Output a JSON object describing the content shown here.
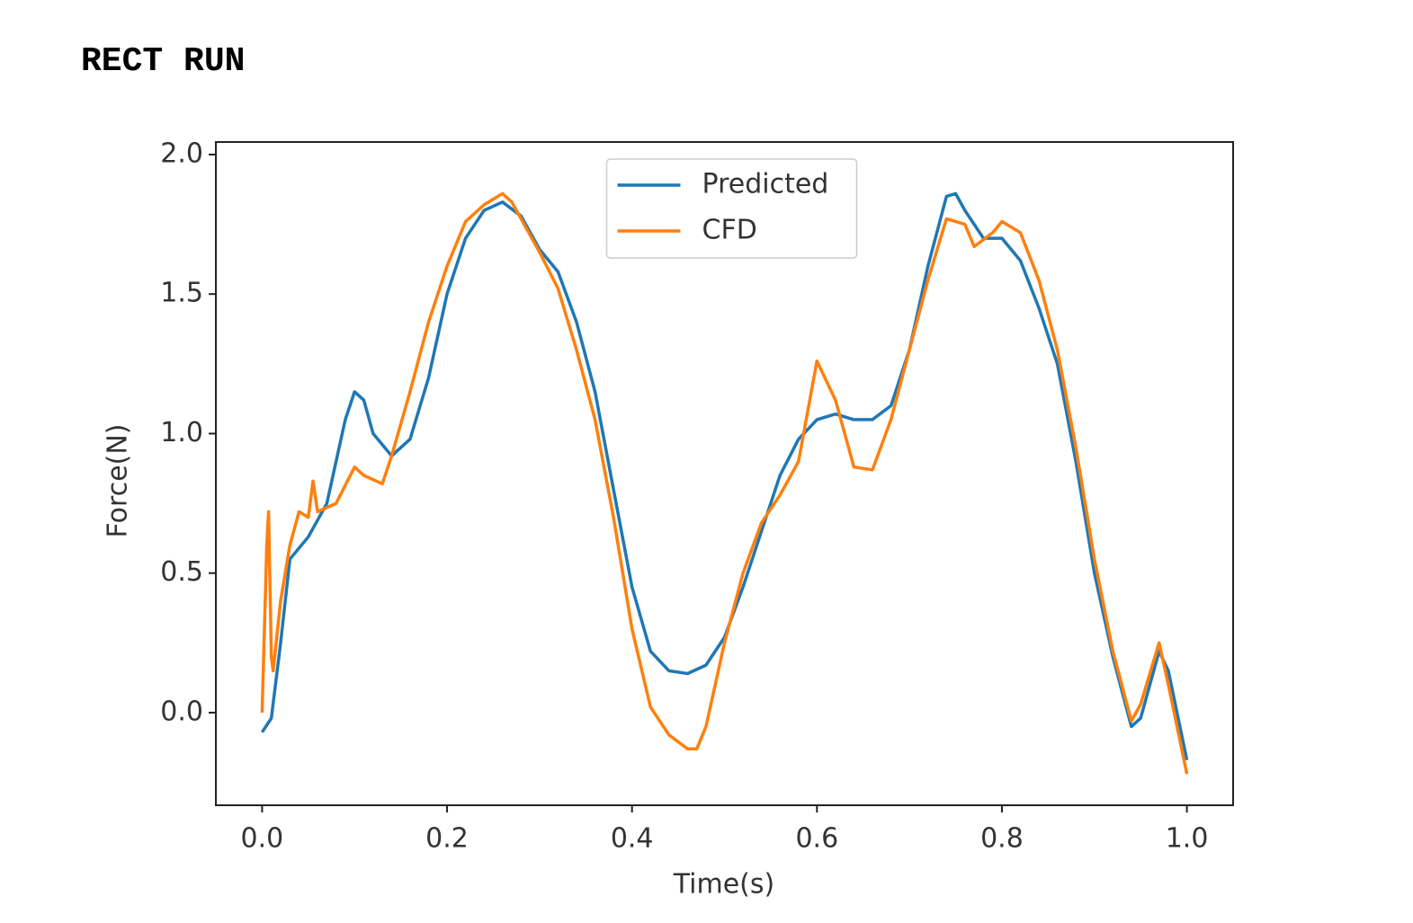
{
  "chart_data": {
    "type": "line",
    "title": "RECT RUN",
    "x_label": "Time(s)",
    "y_label": "Force(N)",
    "xlim": [
      -0.05,
      1.05
    ],
    "ylim": [
      -0.332,
      2.045
    ],
    "xticks": [
      {
        "value": 0,
        "label": "0.0"
      },
      {
        "value": 0.2,
        "label": "0.2"
      },
      {
        "value": 0.4,
        "label": "0.4"
      },
      {
        "value": 0.6,
        "label": "0.6"
      },
      {
        "value": 0.8,
        "label": "0.8"
      },
      {
        "value": 1,
        "label": "1.0"
      }
    ],
    "yticks": [
      {
        "value": 0,
        "label": "0.0"
      },
      {
        "value": 0.5,
        "label": "0.5"
      },
      {
        "value": 1,
        "label": "1.0"
      },
      {
        "value": 1.5,
        "label": "1.5"
      },
      {
        "value": 2,
        "label": "2.0"
      }
    ],
    "grid": false,
    "legend": "upper center",
    "series": [
      {
        "name": "Predicted",
        "color": "#1f77b4",
        "x": [
          0,
          0.01,
          0.02,
          0.03,
          0.05,
          0.07,
          0.09,
          0.1,
          0.11,
          0.12,
          0.14,
          0.16,
          0.18,
          0.2,
          0.22,
          0.24,
          0.26,
          0.28,
          0.3,
          0.32,
          0.34,
          0.36,
          0.38,
          0.4,
          0.42,
          0.44,
          0.46,
          0.48,
          0.5,
          0.52,
          0.54,
          0.56,
          0.58,
          0.6,
          0.62,
          0.64,
          0.66,
          0.68,
          0.7,
          0.72,
          0.74,
          0.75,
          0.76,
          0.78,
          0.8,
          0.82,
          0.84,
          0.86,
          0.88,
          0.9,
          0.92,
          0.94,
          0.95,
          0.97,
          0.98,
          1
        ],
        "values": [
          -0.07,
          -0.02,
          0.25,
          0.55,
          0.63,
          0.75,
          1.05,
          1.15,
          1.12,
          1.0,
          0.92,
          0.98,
          1.2,
          1.5,
          1.7,
          1.8,
          1.83,
          1.78,
          1.66,
          1.58,
          1.4,
          1.15,
          0.8,
          0.45,
          0.22,
          0.15,
          0.14,
          0.17,
          0.27,
          0.45,
          0.65,
          0.85,
          0.98,
          1.05,
          1.07,
          1.05,
          1.05,
          1.1,
          1.3,
          1.6,
          1.85,
          1.86,
          1.8,
          1.7,
          1.7,
          1.62,
          1.45,
          1.25,
          0.9,
          0.5,
          0.2,
          -0.05,
          -0.02,
          0.22,
          0.15,
          -0.17
        ]
      },
      {
        "name": "CFD",
        "color": "#ff7f0e",
        "x": [
          0,
          0.005,
          0.007,
          0.01,
          0.012,
          0.02,
          0.03,
          0.04,
          0.05,
          0.055,
          0.06,
          0.08,
          0.1,
          0.11,
          0.13,
          0.14,
          0.16,
          0.18,
          0.2,
          0.22,
          0.24,
          0.26,
          0.27,
          0.3,
          0.32,
          0.34,
          0.36,
          0.38,
          0.4,
          0.42,
          0.44,
          0.46,
          0.47,
          0.48,
          0.5,
          0.52,
          0.54,
          0.56,
          0.58,
          0.6,
          0.62,
          0.64,
          0.66,
          0.68,
          0.7,
          0.72,
          0.74,
          0.76,
          0.77,
          0.79,
          0.8,
          0.82,
          0.84,
          0.86,
          0.88,
          0.9,
          0.92,
          0.94,
          0.95,
          0.97,
          0.98,
          1
        ],
        "values": [
          0.0,
          0.6,
          0.72,
          0.2,
          0.15,
          0.4,
          0.6,
          0.72,
          0.7,
          0.83,
          0.72,
          0.75,
          0.88,
          0.85,
          0.82,
          0.92,
          1.15,
          1.4,
          1.6,
          1.76,
          1.82,
          1.86,
          1.83,
          1.65,
          1.52,
          1.3,
          1.05,
          0.7,
          0.3,
          0.02,
          -0.08,
          -0.13,
          -0.13,
          -0.05,
          0.25,
          0.5,
          0.68,
          0.78,
          0.9,
          1.26,
          1.12,
          0.88,
          0.87,
          1.05,
          1.3,
          1.55,
          1.77,
          1.75,
          1.67,
          1.72,
          1.76,
          1.72,
          1.55,
          1.3,
          0.95,
          0.55,
          0.22,
          -0.03,
          0.03,
          0.25,
          0.1,
          -0.22
        ]
      }
    ]
  }
}
